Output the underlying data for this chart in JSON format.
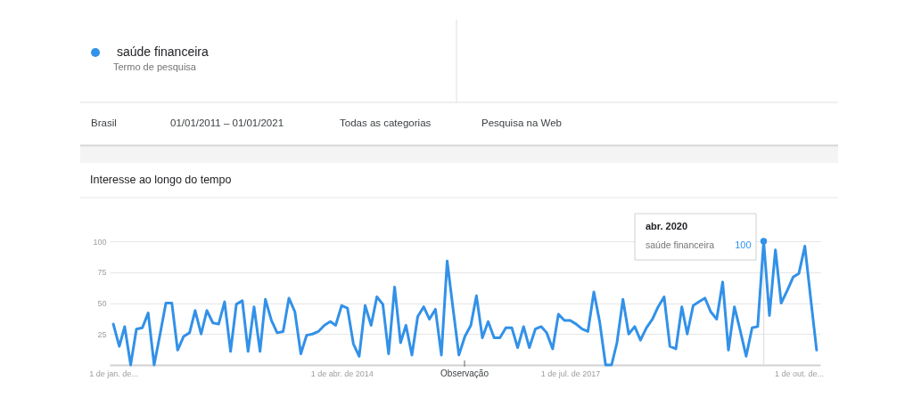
{
  "chart_data": {
    "type": "line",
    "title": "Interesse ao longo do tempo",
    "legend_title": "Termo de pesquisa",
    "legend": "top left",
    "grid": "y",
    "x": [
      "2011-01",
      "2011-02",
      "2011-03",
      "2011-04",
      "2011-05",
      "2011-06",
      "2011-07",
      "2011-08",
      "2011-09",
      "2011-10",
      "2011-11",
      "2011-12",
      "2012-01",
      "2012-02",
      "2012-03",
      "2012-04",
      "2012-05",
      "2012-06",
      "2012-07",
      "2012-08",
      "2012-09",
      "2012-10",
      "2012-11",
      "2012-12",
      "2013-01",
      "2013-02",
      "2013-03",
      "2013-04",
      "2013-05",
      "2013-06",
      "2013-07",
      "2013-08",
      "2013-09",
      "2013-10",
      "2013-11",
      "2013-12",
      "2014-01",
      "2014-02",
      "2014-03",
      "2014-04",
      "2014-05",
      "2014-06",
      "2014-07",
      "2014-08",
      "2014-09",
      "2014-10",
      "2014-11",
      "2014-12",
      "2015-01",
      "2015-02",
      "2015-03",
      "2015-04",
      "2015-05",
      "2015-06",
      "2015-07",
      "2015-08",
      "2015-09",
      "2015-10",
      "2015-11",
      "2015-12",
      "2016-01",
      "2016-02",
      "2016-03",
      "2016-04",
      "2016-05",
      "2016-06",
      "2016-07",
      "2016-08",
      "2016-09",
      "2016-10",
      "2016-11",
      "2016-12",
      "2017-01",
      "2017-02",
      "2017-03",
      "2017-04",
      "2017-05",
      "2017-06",
      "2017-07",
      "2017-08",
      "2017-09",
      "2017-10",
      "2017-11",
      "2017-12",
      "2018-01",
      "2018-02",
      "2018-03",
      "2018-04",
      "2018-05",
      "2018-06",
      "2018-07",
      "2018-08",
      "2018-09",
      "2018-10",
      "2018-11",
      "2018-12",
      "2019-01",
      "2019-02",
      "2019-03",
      "2019-04",
      "2019-05",
      "2019-06",
      "2019-07",
      "2019-08",
      "2019-09",
      "2019-10",
      "2019-11",
      "2019-12",
      "2020-01",
      "2020-02",
      "2020-03",
      "2020-04",
      "2020-05",
      "2020-06",
      "2020-07",
      "2020-08",
      "2020-09",
      "2020-10",
      "2020-11",
      "2020-12",
      "2021-01"
    ],
    "xlim": [
      "2010-12-13",
      "2021-01-20"
    ],
    "xticks": [
      {
        "value": "2011-01-01",
        "label": "1 de jan. de..."
      },
      {
        "value": "2014-04-01",
        "label": "1 de abr. de 2014"
      },
      {
        "value": "2017-07-01",
        "label": "1 de jul. de 2017"
      },
      {
        "value": "2020-10-01",
        "label": "1 de out. de..."
      }
    ],
    "ylim": [
      0,
      100
    ],
    "yticks": [
      25,
      50,
      75,
      100
    ],
    "series": [
      {
        "name": "saúde financeira",
        "color": "#3291e8",
        "values": [
          33,
          15,
          31,
          0,
          29,
          30,
          42,
          0,
          25,
          50,
          50,
          12,
          23,
          26,
          44,
          25,
          44,
          34,
          33,
          51,
          11,
          49,
          52,
          11,
          47,
          11,
          53,
          36,
          26,
          27,
          54,
          43,
          9,
          24,
          25,
          27,
          32,
          35,
          32,
          48,
          46,
          17,
          7,
          48,
          32,
          55,
          49,
          9,
          63,
          18,
          32,
          8,
          39,
          47,
          37,
          45,
          8,
          84,
          45,
          8,
          23,
          32,
          56,
          22,
          35,
          22,
          22,
          30,
          30,
          14,
          31,
          14,
          29,
          31,
          26,
          13,
          41,
          36,
          36,
          33,
          29,
          27,
          59,
          35,
          0,
          0,
          18,
          53,
          25,
          31,
          20,
          30,
          37,
          47,
          55,
          15,
          13,
          47,
          25,
          48,
          51,
          54,
          43,
          37,
          67,
          12,
          47,
          28,
          7,
          30,
          31,
          100,
          40,
          93,
          50,
          60,
          71,
          74,
          96,
          54,
          12
        ],
        "value_labels": [
          null,
          null,
          null,
          null,
          null,
          null,
          null,
          null,
          null,
          null,
          null,
          null,
          null,
          null,
          null,
          null,
          null,
          null,
          null,
          null,
          null,
          null,
          null,
          null,
          null,
          null,
          null,
          null,
          null,
          null,
          null,
          null,
          null,
          null,
          null,
          null,
          null,
          null,
          null,
          null,
          null,
          null,
          null,
          null,
          null,
          null,
          null,
          null,
          null,
          null,
          null,
          null,
          null,
          null,
          null,
          null,
          null,
          null,
          null,
          null,
          null,
          null,
          null,
          null,
          null,
          null,
          null,
          null,
          null,
          null,
          null,
          null,
          null,
          null,
          null,
          null,
          null,
          null,
          null,
          null,
          null,
          null,
          null,
          null,
          null,
          null,
          null,
          null,
          null,
          null,
          null,
          null,
          null,
          null,
          null,
          null,
          null,
          null,
          null,
          null,
          null,
          null,
          null,
          null,
          null,
          null,
          null,
          null,
          null,
          null,
          null,
          "100",
          null,
          null,
          null,
          null,
          null,
          null,
          null,
          null,
          null
        ]
      }
    ],
    "ref_lines": [
      {
        "axis": "x",
        "value": "2020-04",
        "color": "#e3e3e3"
      }
    ],
    "annotations": [
      "Brasil",
      "01/01/2011 – 01/01/2021",
      "Todas as categorias",
      "Pesquisa na Web",
      "Observação",
      "abr. 2020"
    ]
  }
}
